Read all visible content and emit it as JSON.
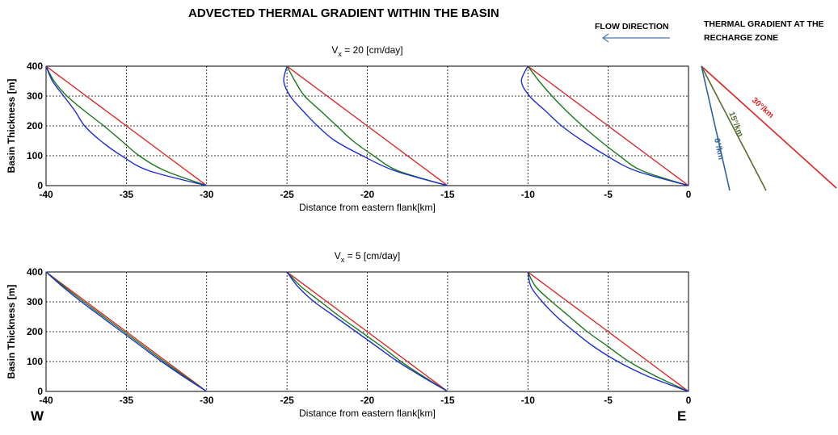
{
  "title": "ADVECTED THERMAL GRADIENT WITHIN THE BASIN",
  "flow_direction_label": "FLOW DIRECTION",
  "legend_title": "THERMAL GRADIENT AT THE RECHARGE ZONE",
  "legend_items": [
    {
      "label": "30°/km",
      "color": "#e02020"
    },
    {
      "label": "15°/km",
      "color": "#556b2f"
    },
    {
      "label": "6°/km",
      "color": "#3060a0"
    }
  ],
  "west_label": "W",
  "east_label": "E",
  "chart_data": [
    {
      "type": "line",
      "title_main": "V",
      "title_sub": "x",
      "title_rest": " = 20 [cm/day]",
      "xlabel": "Distance from eastern flank[km]",
      "ylabel": "Basin Thickness [m]",
      "xlim": [
        -40,
        0
      ],
      "ylim": [
        0,
        400
      ],
      "xticks": [
        -40,
        -35,
        -30,
        -25,
        -20,
        -15,
        -10,
        -5,
        0
      ],
      "yticks": [
        0,
        100,
        200,
        300,
        400
      ],
      "grid": true,
      "depth": [
        400,
        350,
        300,
        250,
        200,
        150,
        100,
        50,
        0
      ],
      "profiles": [
        {
          "series": [
            {
              "name": "30°/km",
              "color": "#e02020",
              "x": [
                -40,
                -38.75,
                -37.5,
                -36.25,
                -35,
                -33.75,
                -32.5,
                -31.25,
                -30
              ]
            },
            {
              "name": "15°/km",
              "color": "#1a7a1a",
              "x": [
                -40,
                -39.5,
                -38.7,
                -37.6,
                -36.4,
                -35.3,
                -34.2,
                -32.6,
                -30
              ]
            },
            {
              "name": "6°/km",
              "color": "#1c2fd0",
              "x": [
                -40,
                -39.6,
                -38.9,
                -38.2,
                -37.6,
                -36.6,
                -35.3,
                -33.6,
                -30
              ]
            }
          ]
        },
        {
          "series": [
            {
              "name": "30°/km",
              "color": "#e02020",
              "x": [
                -25,
                -23.75,
                -22.5,
                -21.25,
                -20,
                -18.75,
                -17.5,
                -16.25,
                -15
              ]
            },
            {
              "name": "15°/km",
              "color": "#1a7a1a",
              "x": [
                -25,
                -24.5,
                -23.9,
                -22.9,
                -21.9,
                -20.9,
                -19.6,
                -18.1,
                -15
              ]
            },
            {
              "name": "6°/km",
              "color": "#1c2fd0",
              "x": [
                -25,
                -25.2,
                -24.8,
                -24.0,
                -23.1,
                -22.0,
                -20.3,
                -18.3,
                -15
              ]
            }
          ]
        },
        {
          "series": [
            {
              "name": "30°/km",
              "color": "#e02020",
              "x": [
                -10,
                -8.75,
                -7.5,
                -6.25,
                -5,
                -3.75,
                -2.5,
                -1.25,
                0
              ]
            },
            {
              "name": "15°/km",
              "color": "#1a7a1a",
              "x": [
                -10,
                -9.3,
                -8.5,
                -7.6,
                -6.6,
                -5.5,
                -4.3,
                -2.9,
                0
              ]
            },
            {
              "name": "6°/km",
              "color": "#1c2fd0",
              "x": [
                -10,
                -10.4,
                -9.9,
                -8.9,
                -7.9,
                -6.6,
                -5.1,
                -3.3,
                0
              ]
            }
          ]
        }
      ]
    },
    {
      "type": "line",
      "title_main": "V",
      "title_sub": "x",
      "title_rest": " = 5 [cm/day]",
      "xlabel": "Distance from eastern flank[km]",
      "ylabel": "Basin Thickness [m]",
      "xlim": [
        -40,
        0
      ],
      "ylim": [
        0,
        400
      ],
      "xticks": [
        -40,
        -35,
        -30,
        -25,
        -20,
        -15,
        -10,
        -5,
        0
      ],
      "yticks": [
        0,
        100,
        200,
        300,
        400
      ],
      "grid": true,
      "depth": [
        400,
        350,
        300,
        250,
        200,
        150,
        100,
        50,
        0
      ],
      "profiles": [
        {
          "series": [
            {
              "name": "30°/km",
              "color": "#e02020",
              "x": [
                -40,
                -38.75,
                -37.5,
                -36.25,
                -35,
                -33.75,
                -32.5,
                -31.25,
                -30
              ]
            },
            {
              "name": "15°/km",
              "color": "#1a7a1a",
              "x": [
                -40,
                -38.85,
                -37.65,
                -36.4,
                -35.15,
                -33.9,
                -32.65,
                -31.35,
                -30
              ]
            },
            {
              "name": "6°/km",
              "color": "#1c2fd0",
              "x": [
                -40,
                -38.95,
                -37.8,
                -36.55,
                -35.3,
                -34.05,
                -32.8,
                -31.45,
                -30
              ]
            }
          ]
        },
        {
          "series": [
            {
              "name": "30°/km",
              "color": "#e02020",
              "x": [
                -25,
                -23.75,
                -22.5,
                -21.25,
                -20,
                -18.75,
                -17.5,
                -16.25,
                -15
              ]
            },
            {
              "name": "15°/km",
              "color": "#1a7a1a",
              "x": [
                -25,
                -24.1,
                -22.9,
                -21.7,
                -20.4,
                -19.1,
                -17.9,
                -16.5,
                -15
              ]
            },
            {
              "name": "6°/km",
              "color": "#1c2fd0",
              "x": [
                -25,
                -24.3,
                -23.3,
                -22.0,
                -20.7,
                -19.4,
                -18.1,
                -16.6,
                -15
              ]
            }
          ]
        },
        {
          "series": [
            {
              "name": "30°/km",
              "color": "#e02020",
              "x": [
                -10,
                -8.75,
                -7.5,
                -6.25,
                -5,
                -3.75,
                -2.5,
                -1.25,
                0
              ]
            },
            {
              "name": "15°/km",
              "color": "#1a7a1a",
              "x": [
                -10,
                -9.5,
                -8.5,
                -7.4,
                -6.3,
                -5.0,
                -3.7,
                -2.0,
                0
              ]
            },
            {
              "name": "6°/km",
              "color": "#1c2fd0",
              "x": [
                -10,
                -9.8,
                -9.1,
                -8.2,
                -7.1,
                -5.9,
                -4.4,
                -2.5,
                0
              ]
            }
          ]
        }
      ]
    }
  ]
}
